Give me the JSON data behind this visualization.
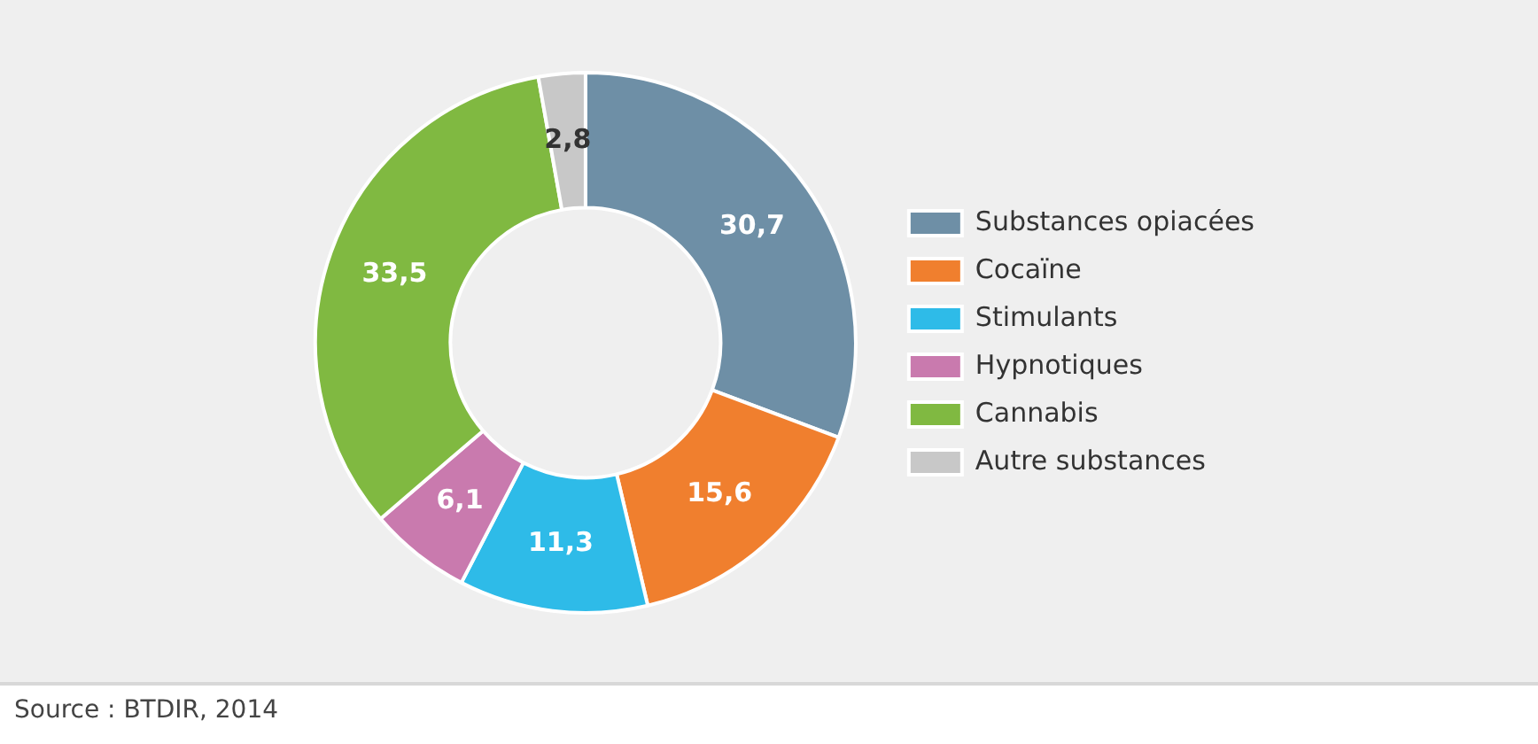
{
  "chart_data": {
    "type": "donut",
    "categories": [
      "Substances opiacées",
      "Cocaïne",
      "Stimulants",
      "Hypnotiques",
      "Cannabis",
      "Autre substances"
    ],
    "values": [
      30.7,
      15.6,
      11.3,
      6.1,
      33.5,
      2.8
    ],
    "value_labels": [
      "30,7",
      "15,6",
      "11,3",
      "6,1",
      "33,5",
      "2,8"
    ],
    "colors": [
      "#6e8fa6",
      "#f07f2e",
      "#2ebbe8",
      "#c97aae",
      "#80b941",
      "#c8c8c8"
    ],
    "legend": "right",
    "annotations": [
      "Source : BTDIR, 2014"
    ]
  }
}
